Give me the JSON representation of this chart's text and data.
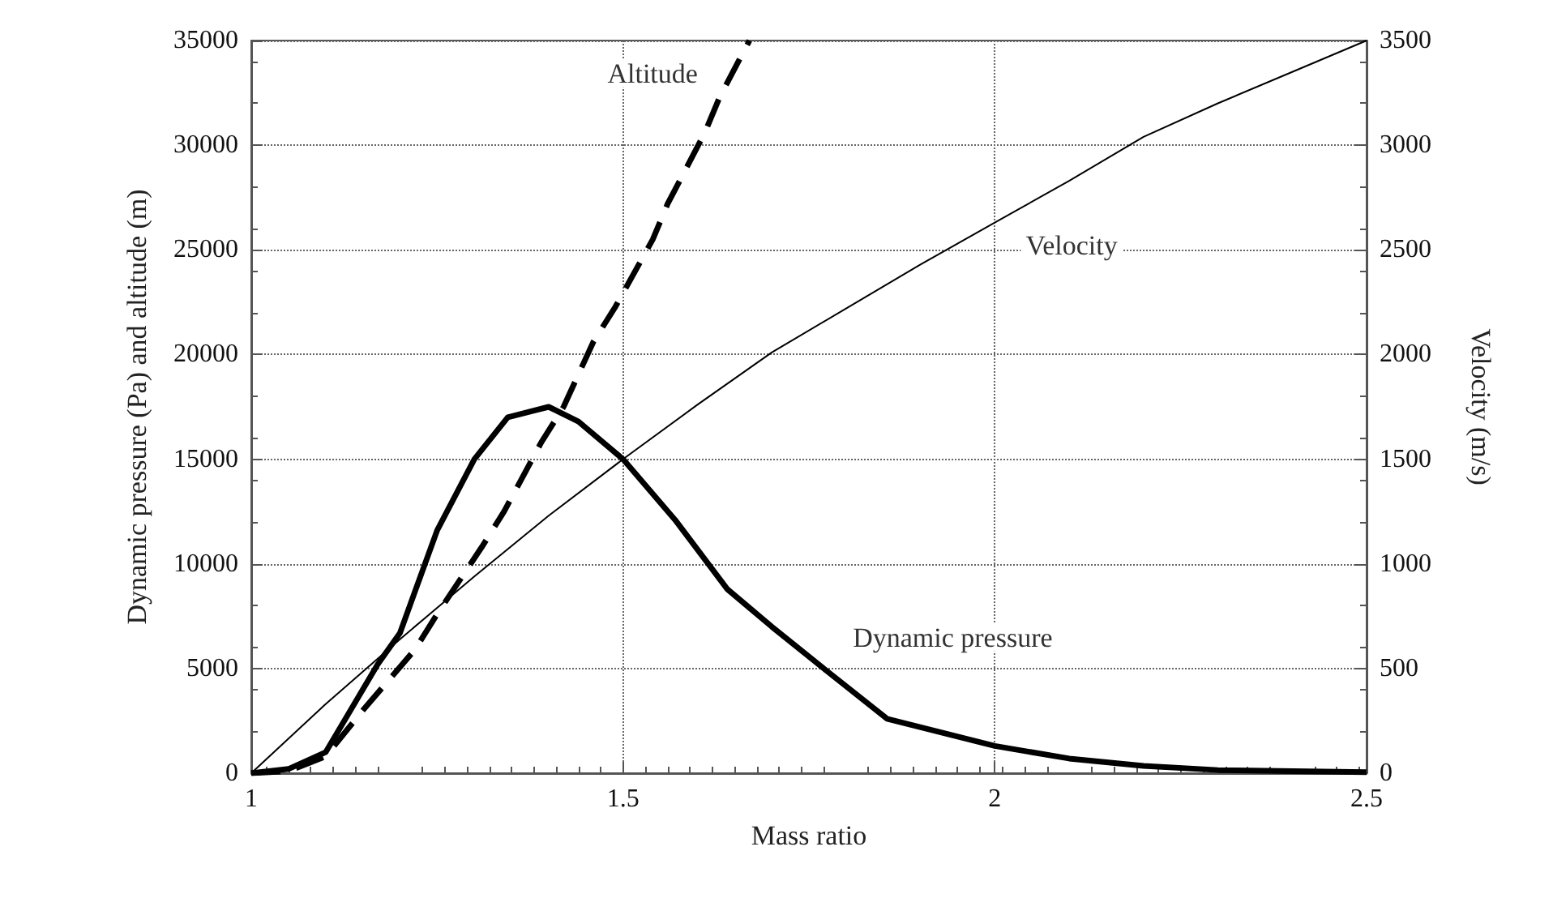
{
  "chart_data": {
    "type": "line",
    "xlabel": "Mass ratio",
    "ylabel": "Dynamic pressure (Pa) and altitude (m)",
    "y2label": "Velocity (m/s)",
    "xlim": [
      1,
      2.5
    ],
    "xticks": [
      1,
      1.5,
      2,
      2.5
    ],
    "ylim": [
      0,
      35000
    ],
    "yticks": [
      0,
      5000,
      10000,
      15000,
      20000,
      25000,
      30000,
      35000
    ],
    "y2lim": [
      0,
      3500
    ],
    "y2ticks": [
      0,
      500,
      1000,
      1500,
      2000,
      2500,
      3000,
      3500
    ],
    "grid": true,
    "legend": false,
    "marker": "none",
    "series": [
      {
        "name": "Dynamic pressure",
        "color": "#000000",
        "line_style": "solid",
        "x": [
          1,
          1.05,
          1.1,
          1.17,
          1.2,
          1.25,
          1.3,
          1.345,
          1.4,
          1.44,
          1.5,
          1.57,
          1.64,
          1.7,
          1.77,
          1.855,
          2,
          2.1,
          2.2,
          2.3,
          2.5
        ],
        "values": [
          0,
          200,
          1000,
          5200,
          6700,
          11600,
          15000,
          17000,
          17500,
          16800,
          15000,
          12100,
          8800,
          7000,
          5000,
          2600,
          1300,
          700,
          350,
          150,
          50
        ]
      },
      {
        "name": "Velocity",
        "color": "#000000",
        "line_style": "solid",
        "axis": "y2",
        "x": [
          1,
          1.1,
          1.2,
          1.3,
          1.4,
          1.5,
          1.6,
          1.7,
          1.8,
          1.9,
          2,
          2.1,
          2.2,
          2.3,
          2.4,
          2.5
        ],
        "values": [
          0,
          330,
          640,
          940,
          1230,
          1500,
          1760,
          2010,
          2220,
          2430,
          2630,
          2830,
          3040,
          3200,
          3350,
          3500
        ]
      },
      {
        "name": "Altitude",
        "color": "#000000",
        "line_style": "dashed",
        "x": [
          1,
          1.05,
          1.1,
          1.15,
          1.22,
          1.25,
          1.31,
          1.34,
          1.39,
          1.42,
          1.46,
          1.49,
          1.54,
          1.56,
          1.61,
          1.63,
          1.67
        ],
        "values": [
          0,
          100,
          800,
          3000,
          5900,
          7600,
          10800,
          12500,
          15800,
          17500,
          20600,
          22300,
          25500,
          27200,
          30600,
          32300,
          35000
        ]
      }
    ]
  }
}
